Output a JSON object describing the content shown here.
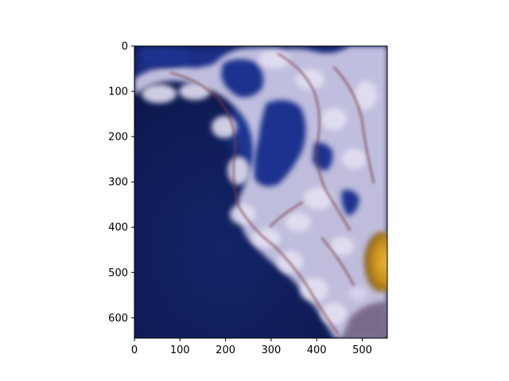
{
  "figure": {
    "background": "#ffffff",
    "image_subject": "close-up of a sea anemone or jellyfish tentacles",
    "colors": {
      "water_dark": "#0f1c57",
      "water_mid": "#1b2f88",
      "tentacle_light": "#c8c8e4",
      "tentacle_pale": "#e2dff0",
      "vein": "#7a3f48",
      "orange_spot": "#d7a223"
    }
  },
  "chart_data": {
    "type": "image",
    "x_axis": {
      "lim": [
        0,
        555
      ],
      "ticks": [
        {
          "value": 0,
          "label": "0"
        },
        {
          "value": 100,
          "label": "100"
        },
        {
          "value": 200,
          "label": "200"
        },
        {
          "value": 300,
          "label": "300"
        },
        {
          "value": 400,
          "label": "400"
        },
        {
          "value": 500,
          "label": "500"
        }
      ]
    },
    "y_axis": {
      "lim": [
        0,
        645
      ],
      "inverted": true,
      "ticks": [
        {
          "value": 0,
          "label": "0"
        },
        {
          "value": 100,
          "label": "100"
        },
        {
          "value": 200,
          "label": "200"
        },
        {
          "value": 300,
          "label": "300"
        },
        {
          "value": 400,
          "label": "400"
        },
        {
          "value": 500,
          "label": "500"
        },
        {
          "value": 600,
          "label": "600"
        }
      ]
    },
    "grid": false,
    "legend": false
  }
}
